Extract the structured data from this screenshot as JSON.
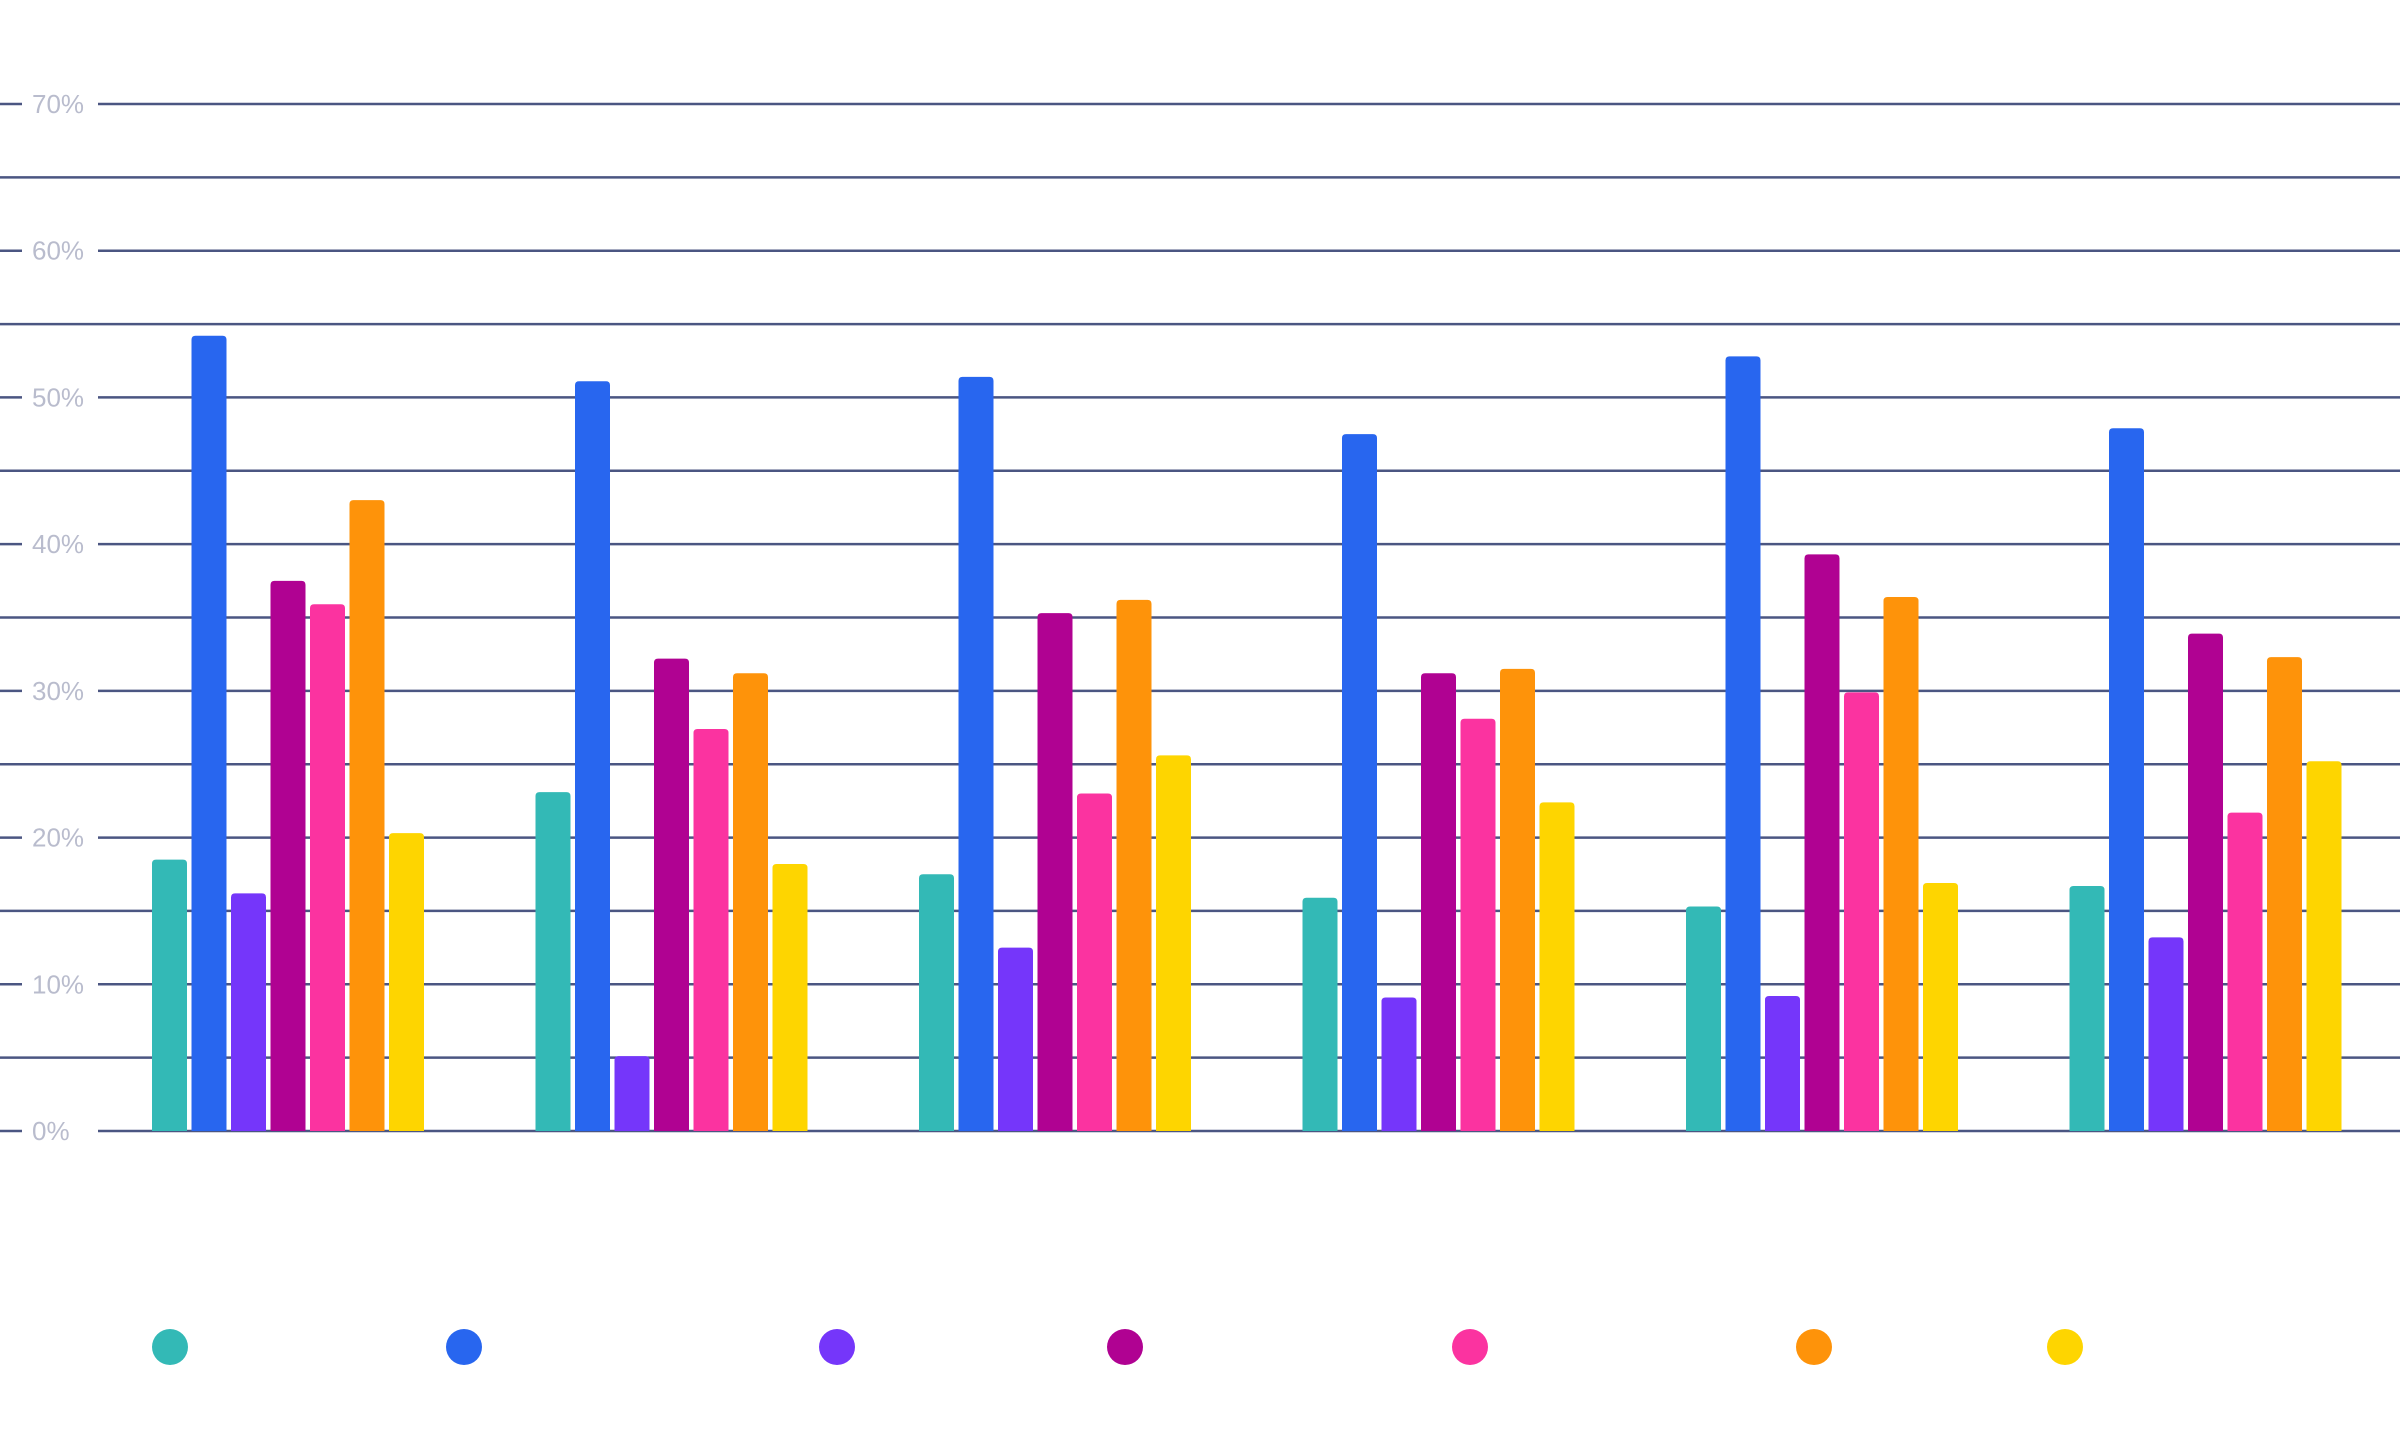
{
  "chart_data": {
    "type": "bar",
    "title": "",
    "xlabel": "",
    "ylabel": "",
    "ylim": [
      0,
      70
    ],
    "y_ticks": [
      "0%",
      "10%",
      "20%",
      "30%",
      "40%",
      "50%",
      "60%",
      "70%"
    ],
    "grid": true,
    "grid_minor_step": 5,
    "legend": "bottom",
    "categories": [
      "",
      "",
      "",
      "",
      "",
      ""
    ],
    "series": [
      {
        "color": "#33b9b6",
        "values": [
          18.5,
          23.1,
          17.5,
          15.9,
          15.3,
          16.7
        ]
      },
      {
        "color": "#2866ef",
        "values": [
          54.2,
          51.1,
          51.4,
          47.5,
          52.8,
          47.9
        ]
      },
      {
        "color": "#7536fa",
        "values": [
          16.2,
          5.1,
          12.5,
          9.1,
          9.2,
          13.2
        ]
      },
      {
        "color": "#b00292",
        "values": [
          37.5,
          32.2,
          35.3,
          31.2,
          39.3,
          33.9
        ]
      },
      {
        "color": "#fb33a0",
        "values": [
          35.9,
          27.4,
          23.0,
          28.1,
          29.9,
          21.7
        ]
      },
      {
        "color": "#fe930a",
        "values": [
          43.0,
          31.2,
          36.2,
          31.5,
          36.4,
          32.3
        ]
      },
      {
        "color": "#fed500",
        "values": [
          20.3,
          18.2,
          25.6,
          22.4,
          16.9,
          25.2
        ]
      }
    ]
  }
}
